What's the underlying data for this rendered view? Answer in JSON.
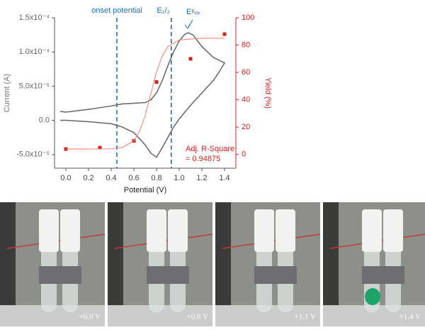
{
  "chart_data": {
    "type": "line",
    "x_label": "Potential (V)",
    "y_label": "Current (A)",
    "y2_label": "Yield (%)",
    "xlim": [
      -0.1,
      1.5
    ],
    "xticks": [
      {
        "value": 0,
        "label": "0.0"
      },
      0.2,
      0.4,
      0.6,
      0.8,
      {
        "value": 1,
        "label": "1.0"
      },
      1.2,
      1.4
    ],
    "ylim": [
      -7e-05,
      0.00015
    ],
    "yticks": [
      {
        "value": -5e-05,
        "label": "-5.0x10⁻⁵"
      },
      {
        "value": 0,
        "label": "0.0"
      },
      {
        "value": 5e-05,
        "label": "5.0x10⁻⁵"
      },
      {
        "value": 0.0001,
        "label": "1.0x10⁻⁴"
      },
      {
        "value": 0.00015,
        "label": "1.5x10⁻⁴"
      }
    ],
    "y2lim": [
      -10,
      100
    ],
    "y2ticks": [
      0,
      20,
      40,
      60,
      80,
      100
    ],
    "series": [
      {
        "type": "line",
        "color": "#666666",
        "x": [
          -0.05,
          0.0,
          0.2,
          0.4,
          0.5,
          0.6,
          0.7,
          0.75,
          0.8,
          0.85,
          0.9,
          0.95,
          1.0,
          1.05,
          1.08,
          1.12,
          1.2,
          1.3,
          1.4,
          1.35,
          1.3,
          1.2,
          1.1,
          1.0,
          0.95,
          0.9,
          0.85,
          0.8,
          0.75,
          0.7,
          0.6,
          0.5,
          0.4,
          0.2,
          0.0,
          -0.05
        ],
        "y": [
          1.3e-05,
          1.2e-05,
          1.6e-05,
          2.1e-05,
          2.4e-05,
          2.5e-05,
          2.6e-05,
          3e-05,
          4e-05,
          5.8e-05,
          8e-05,
          0.0001,
          0.000116,
          0.000126,
          0.000128,
          0.000125,
          0.000108,
          9.2e-05,
          8.4e-05,
          7e-05,
          5.8e-05,
          4e-05,
          2.2e-05,
          2e-06,
          -1e-05,
          -2.5e-05,
          -4e-05,
          -5.4e-05,
          -4.8e-05,
          -3.6e-05,
          -1.8e-05,
          -1e-05,
          -5e-06,
          -2e-06,
          0,
          0
        ]
      },
      {
        "type": "scatter",
        "axis": "y2",
        "color": "#d62020",
        "x": [
          0,
          0.3,
          0.6,
          0.8,
          1.1,
          1.4
        ],
        "y": [
          4,
          5,
          10,
          53,
          70,
          88
        ]
      },
      {
        "type": "line",
        "axis": "y2",
        "color": "#f08a78",
        "x": [
          0,
          0.2,
          0.4,
          0.5,
          0.6,
          0.65,
          0.7,
          0.75,
          0.8,
          0.85,
          0.9,
          1.0,
          1.2,
          1.4
        ],
        "y": [
          4,
          4,
          4.2,
          5.2,
          10.1,
          16.9,
          28.5,
          44.5,
          60.4,
          72.1,
          78.9,
          83.8,
          85,
          85
        ]
      }
    ],
    "vlines": [
      {
        "x": 0.45,
        "label": "onset potential",
        "color": "#1f6fb4"
      },
      {
        "x": 0.93,
        "label": "E₁/₂",
        "color": "#1f6fb4"
      }
    ],
    "annotations": [
      {
        "text": "Eᵖₒₓ",
        "color": "#1f6fb4"
      },
      {
        "text": "Adj. R-Square",
        "color": "#d62020"
      },
      {
        "text": "= 0.94875",
        "color": "#d62020"
      }
    ]
  },
  "photos": [
    {
      "label": "+0.0 V"
    },
    {
      "label": "+0.8 V"
    },
    {
      "label": "+1.1 V"
    },
    {
      "label": "+1.4 V"
    }
  ]
}
